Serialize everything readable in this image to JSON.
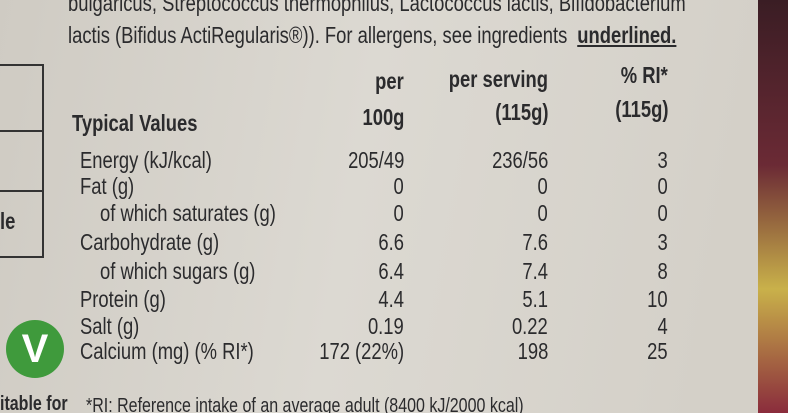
{
  "intro": {
    "line1": "bulgaricus, Streptococcus thermophilus, Lactococcus lactis, Bifidobacterium",
    "line2": "lactis (Bifidus ActiRegularis®)). For allergens, see ingredients",
    "underlined": "underlined."
  },
  "table": {
    "header": {
      "label": "Typical Values",
      "columns": [
        [
          "per",
          "100g"
        ],
        [
          "per serving",
          "(115g)"
        ],
        [
          "% RI*",
          "(115g)"
        ]
      ]
    },
    "rows": [
      [
        "Energy (kJ/kcal)",
        "205/49",
        "236/56",
        "3"
      ],
      [
        "Fat (g)",
        "0",
        "0",
        "0"
      ],
      [
        "of which saturates (g)",
        "0",
        "0",
        "0"
      ],
      [
        "Carbohydrate (g)",
        "6.6",
        "7.6",
        "3"
      ],
      [
        "of which sugars (g)",
        "6.4",
        "7.4",
        "8"
      ],
      [
        "Protein (g)",
        "4.4",
        "5.1",
        "10"
      ],
      [
        "Salt (g)",
        "0.19",
        "0.22",
        "4"
      ],
      [
        "Calcium (mg) (% RI*)",
        "172 (22%)",
        "198",
        "25"
      ]
    ]
  },
  "side": {
    "box_text": "le",
    "badge": "V",
    "caption": "itable for"
  },
  "footnote": "*RI: Reference intake of an average adult (8400 kJ/2000 kcal)"
}
